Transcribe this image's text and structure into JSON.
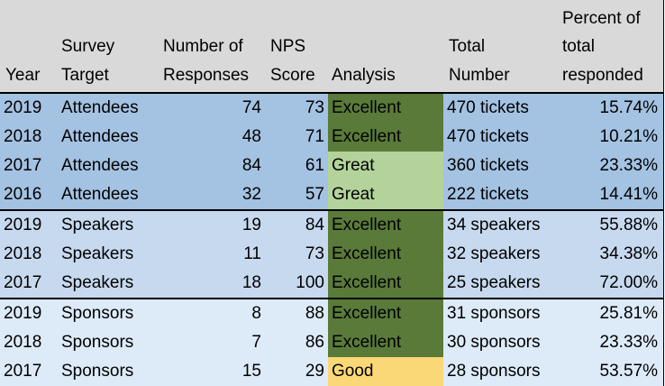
{
  "colors": {
    "header_bg": "#d9d9d9",
    "attendees_bg": "#a4c2e2",
    "speakers_bg": "#c7d9ef",
    "sponsors_bg": "#ddeaf7",
    "excellent": "#5a7a3a",
    "great": "#b3d39a",
    "good": "#fbd877"
  },
  "headers": {
    "year": "Year",
    "survey_target": "Survey\nTarget",
    "responses": "Number of\nResponses",
    "nps": "NPS\nScore",
    "analysis": "Analysis",
    "total_number": "Total\nNumber",
    "percent": "Percent of\ntotal\nresponded"
  },
  "rows": [
    {
      "year": "2019",
      "target": "Attendees",
      "responses": "74",
      "nps": "73",
      "analysis": "Excellent",
      "total": "470 tickets",
      "percent": "15.74%"
    },
    {
      "year": "2018",
      "target": "Attendees",
      "responses": "48",
      "nps": "71",
      "analysis": "Excellent",
      "total": "470 tickets",
      "percent": "10.21%"
    },
    {
      "year": "2017",
      "target": "Attendees",
      "responses": "84",
      "nps": "61",
      "analysis": "Great",
      "total": "360 tickets",
      "percent": "23.33%"
    },
    {
      "year": "2016",
      "target": "Attendees",
      "responses": "32",
      "nps": "57",
      "analysis": "Great",
      "total": "222 tickets",
      "percent": "14.41%"
    },
    {
      "year": "2019",
      "target": "Speakers",
      "responses": "19",
      "nps": "84",
      "analysis": "Excellent",
      "total": "34 speakers",
      "percent": "55.88%"
    },
    {
      "year": "2018",
      "target": "Speakers",
      "responses": "11",
      "nps": "73",
      "analysis": "Excellent",
      "total": "32 speakers",
      "percent": "34.38%"
    },
    {
      "year": "2017",
      "target": "Speakers",
      "responses": "18",
      "nps": "100",
      "analysis": "Excellent",
      "total": "25 speakers",
      "percent": "72.00%"
    },
    {
      "year": "2019",
      "target": "Sponsors",
      "responses": "8",
      "nps": "88",
      "analysis": "Excellent",
      "total": "31 sponsors",
      "percent": "25.81%"
    },
    {
      "year": "2018",
      "target": "Sponsors",
      "responses": "7",
      "nps": "86",
      "analysis": "Excellent",
      "total": "30 sponsors",
      "percent": "23.33%"
    },
    {
      "year": "2017",
      "target": "Sponsors",
      "responses": "15",
      "nps": "29",
      "analysis": "Good",
      "total": "28 sponsors",
      "percent": "53.57%"
    }
  ]
}
